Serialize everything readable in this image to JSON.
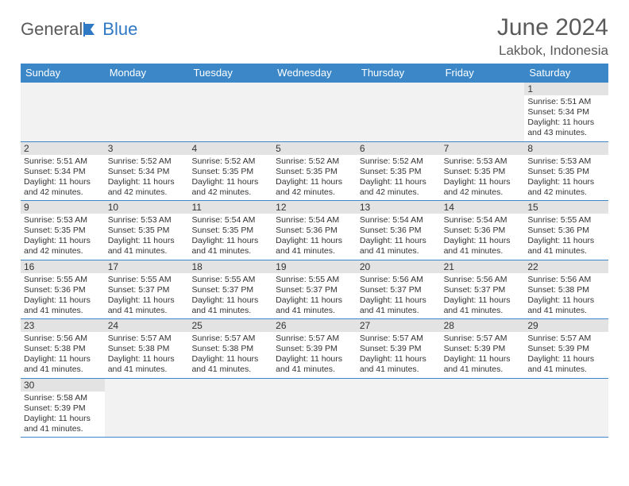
{
  "brand": {
    "general": "General",
    "blue": "Blue",
    "logo_color": "#2f78c4"
  },
  "title": "June 2024",
  "location": "Lakbok, Indonesia",
  "colors": {
    "header_bg": "#3b87c8",
    "header_text": "#ffffff",
    "daynum_bg": "#e3e3e3",
    "blank_bg": "#f2f2f2",
    "text": "#333333",
    "rule": "#3b87c8"
  },
  "weekdays": [
    "Sunday",
    "Monday",
    "Tuesday",
    "Wednesday",
    "Thursday",
    "Friday",
    "Saturday"
  ],
  "weeks": [
    {
      "nums": [
        "",
        "",
        "",
        "",
        "",
        "",
        "1"
      ],
      "cells": [
        null,
        null,
        null,
        null,
        null,
        null,
        {
          "sunrise": "Sunrise: 5:51 AM",
          "sunset": "Sunset: 5:34 PM",
          "daylight": "Daylight: 11 hours and 43 minutes."
        }
      ]
    },
    {
      "nums": [
        "2",
        "3",
        "4",
        "5",
        "6",
        "7",
        "8"
      ],
      "cells": [
        {
          "sunrise": "Sunrise: 5:51 AM",
          "sunset": "Sunset: 5:34 PM",
          "daylight": "Daylight: 11 hours and 42 minutes."
        },
        {
          "sunrise": "Sunrise: 5:52 AM",
          "sunset": "Sunset: 5:34 PM",
          "daylight": "Daylight: 11 hours and 42 minutes."
        },
        {
          "sunrise": "Sunrise: 5:52 AM",
          "sunset": "Sunset: 5:35 PM",
          "daylight": "Daylight: 11 hours and 42 minutes."
        },
        {
          "sunrise": "Sunrise: 5:52 AM",
          "sunset": "Sunset: 5:35 PM",
          "daylight": "Daylight: 11 hours and 42 minutes."
        },
        {
          "sunrise": "Sunrise: 5:52 AM",
          "sunset": "Sunset: 5:35 PM",
          "daylight": "Daylight: 11 hours and 42 minutes."
        },
        {
          "sunrise": "Sunrise: 5:53 AM",
          "sunset": "Sunset: 5:35 PM",
          "daylight": "Daylight: 11 hours and 42 minutes."
        },
        {
          "sunrise": "Sunrise: 5:53 AM",
          "sunset": "Sunset: 5:35 PM",
          "daylight": "Daylight: 11 hours and 42 minutes."
        }
      ]
    },
    {
      "nums": [
        "9",
        "10",
        "11",
        "12",
        "13",
        "14",
        "15"
      ],
      "cells": [
        {
          "sunrise": "Sunrise: 5:53 AM",
          "sunset": "Sunset: 5:35 PM",
          "daylight": "Daylight: 11 hours and 42 minutes."
        },
        {
          "sunrise": "Sunrise: 5:53 AM",
          "sunset": "Sunset: 5:35 PM",
          "daylight": "Daylight: 11 hours and 41 minutes."
        },
        {
          "sunrise": "Sunrise: 5:54 AM",
          "sunset": "Sunset: 5:35 PM",
          "daylight": "Daylight: 11 hours and 41 minutes."
        },
        {
          "sunrise": "Sunrise: 5:54 AM",
          "sunset": "Sunset: 5:36 PM",
          "daylight": "Daylight: 11 hours and 41 minutes."
        },
        {
          "sunrise": "Sunrise: 5:54 AM",
          "sunset": "Sunset: 5:36 PM",
          "daylight": "Daylight: 11 hours and 41 minutes."
        },
        {
          "sunrise": "Sunrise: 5:54 AM",
          "sunset": "Sunset: 5:36 PM",
          "daylight": "Daylight: 11 hours and 41 minutes."
        },
        {
          "sunrise": "Sunrise: 5:55 AM",
          "sunset": "Sunset: 5:36 PM",
          "daylight": "Daylight: 11 hours and 41 minutes."
        }
      ]
    },
    {
      "nums": [
        "16",
        "17",
        "18",
        "19",
        "20",
        "21",
        "22"
      ],
      "cells": [
        {
          "sunrise": "Sunrise: 5:55 AM",
          "sunset": "Sunset: 5:36 PM",
          "daylight": "Daylight: 11 hours and 41 minutes."
        },
        {
          "sunrise": "Sunrise: 5:55 AM",
          "sunset": "Sunset: 5:37 PM",
          "daylight": "Daylight: 11 hours and 41 minutes."
        },
        {
          "sunrise": "Sunrise: 5:55 AM",
          "sunset": "Sunset: 5:37 PM",
          "daylight": "Daylight: 11 hours and 41 minutes."
        },
        {
          "sunrise": "Sunrise: 5:55 AM",
          "sunset": "Sunset: 5:37 PM",
          "daylight": "Daylight: 11 hours and 41 minutes."
        },
        {
          "sunrise": "Sunrise: 5:56 AM",
          "sunset": "Sunset: 5:37 PM",
          "daylight": "Daylight: 11 hours and 41 minutes."
        },
        {
          "sunrise": "Sunrise: 5:56 AM",
          "sunset": "Sunset: 5:37 PM",
          "daylight": "Daylight: 11 hours and 41 minutes."
        },
        {
          "sunrise": "Sunrise: 5:56 AM",
          "sunset": "Sunset: 5:38 PM",
          "daylight": "Daylight: 11 hours and 41 minutes."
        }
      ]
    },
    {
      "nums": [
        "23",
        "24",
        "25",
        "26",
        "27",
        "28",
        "29"
      ],
      "cells": [
        {
          "sunrise": "Sunrise: 5:56 AM",
          "sunset": "Sunset: 5:38 PM",
          "daylight": "Daylight: 11 hours and 41 minutes."
        },
        {
          "sunrise": "Sunrise: 5:57 AM",
          "sunset": "Sunset: 5:38 PM",
          "daylight": "Daylight: 11 hours and 41 minutes."
        },
        {
          "sunrise": "Sunrise: 5:57 AM",
          "sunset": "Sunset: 5:38 PM",
          "daylight": "Daylight: 11 hours and 41 minutes."
        },
        {
          "sunrise": "Sunrise: 5:57 AM",
          "sunset": "Sunset: 5:39 PM",
          "daylight": "Daylight: 11 hours and 41 minutes."
        },
        {
          "sunrise": "Sunrise: 5:57 AM",
          "sunset": "Sunset: 5:39 PM",
          "daylight": "Daylight: 11 hours and 41 minutes."
        },
        {
          "sunrise": "Sunrise: 5:57 AM",
          "sunset": "Sunset: 5:39 PM",
          "daylight": "Daylight: 11 hours and 41 minutes."
        },
        {
          "sunrise": "Sunrise: 5:57 AM",
          "sunset": "Sunset: 5:39 PM",
          "daylight": "Daylight: 11 hours and 41 minutes."
        }
      ]
    },
    {
      "nums": [
        "30",
        "",
        "",
        "",
        "",
        "",
        ""
      ],
      "cells": [
        {
          "sunrise": "Sunrise: 5:58 AM",
          "sunset": "Sunset: 5:39 PM",
          "daylight": "Daylight: 11 hours and 41 minutes."
        },
        null,
        null,
        null,
        null,
        null,
        null
      ]
    }
  ]
}
